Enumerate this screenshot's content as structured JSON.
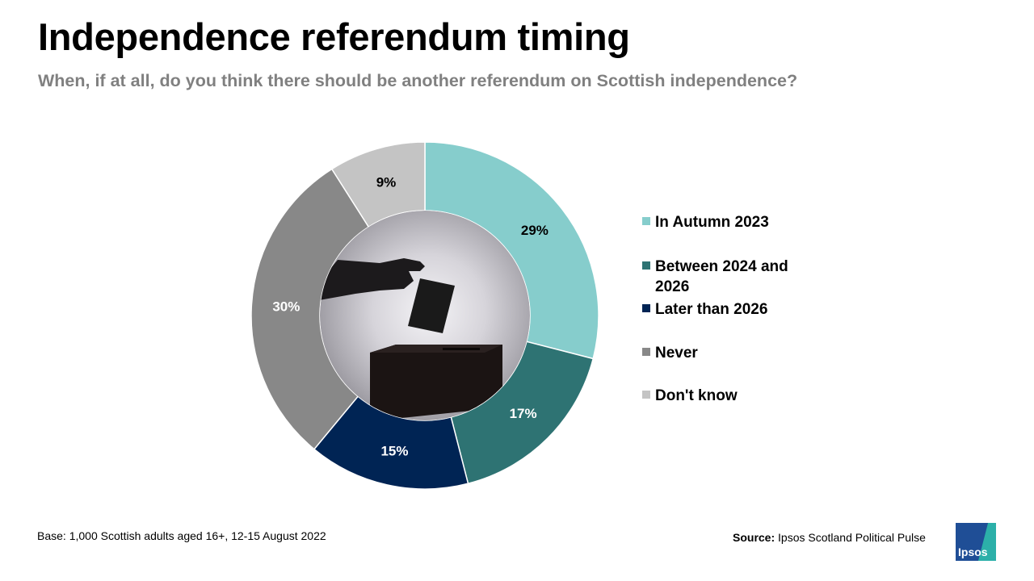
{
  "title": "Independence referendum timing",
  "subtitle": "When, if at all, do you think there should be another referendum on Scottish independence?",
  "footnote": "Base: 1,000 Scottish adults aged 16+, 12-15 August 2022",
  "source": {
    "label": "Source:",
    "text": "Ipsos Scotland Political Pulse"
  },
  "logo": {
    "text": "Ipsos"
  },
  "chart_data": {
    "type": "pie",
    "style": "donut",
    "start_angle_deg": 0,
    "direction": "clockwise",
    "legend_position": "right",
    "categories": [
      "In Autumn 2023",
      "Between 2024 and 2026",
      "Later than 2026",
      "Never",
      "Don't know"
    ],
    "values": [
      29,
      17,
      15,
      30,
      9
    ],
    "labels": [
      "29%",
      "17%",
      "15%",
      "30%",
      "9%"
    ],
    "colors": [
      "#86cdcc",
      "#2e7373",
      "#002454",
      "#888888",
      "#c4c4c4"
    ],
    "label_colors": [
      "#000000",
      "#ffffff",
      "#ffffff",
      "#ffffff",
      "#000000"
    ],
    "center_image": "ballot-box-photo"
  }
}
